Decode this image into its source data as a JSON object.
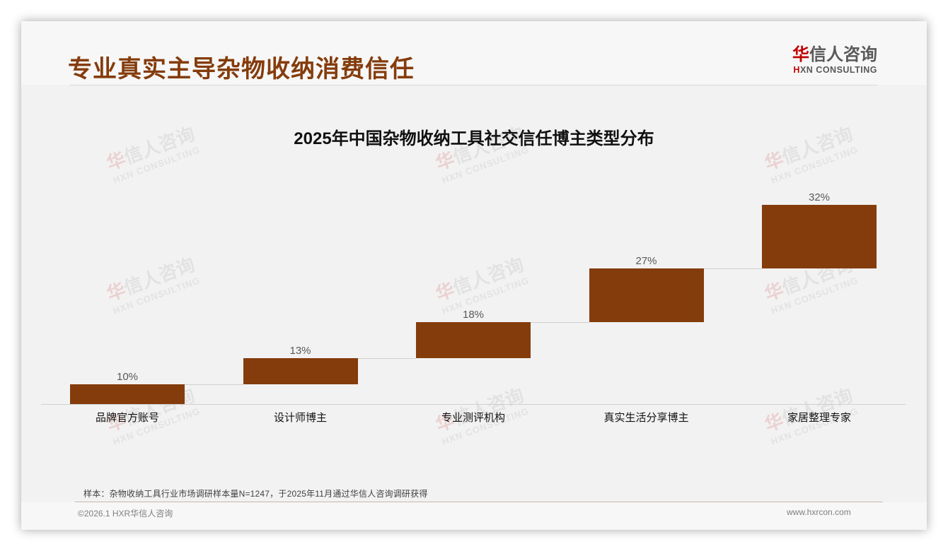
{
  "header": {
    "page_title": "专业真实主导杂物收纳消费信任",
    "logo": {
      "cn_accent": "华",
      "cn_rest": "信人咨询",
      "en_accent": "H",
      "en_rest": "XN CONSULTING"
    }
  },
  "watermark": {
    "cn_accent": "华",
    "cn_rest": "信人咨询",
    "en": "HXN CONSULTING"
  },
  "chart_data": {
    "type": "bar",
    "subtype": "waterfall",
    "title": "2025年中国杂物收纳工具社交信任博主类型分布",
    "categories": [
      "品牌官方账号",
      "设计师博主",
      "专业测评机构",
      "真实生活分享博主",
      "家居整理专家"
    ],
    "values": [
      10,
      13,
      18,
      27,
      32
    ],
    "value_labels": [
      "10%",
      "13%",
      "18%",
      "27%",
      "32%"
    ],
    "unit": "%",
    "xlabel": "",
    "ylabel": "",
    "ylim": [
      0,
      100
    ],
    "grid": false,
    "legend": null,
    "bar_color": "#843c0c",
    "connector_color": "#d0d0d0"
  },
  "footer": {
    "note": "样本：杂物收纳工具行业市场调研样本量N=1247，于2025年11月通过华信人咨询调研获得",
    "copyright": "©2026.1 HXR华信人咨询",
    "website": "www.hxrcon.com"
  },
  "colors": {
    "title": "#843c0c",
    "bar": "#843c0c",
    "logo_accent": "#c00000",
    "background": "#f2f2f2"
  }
}
